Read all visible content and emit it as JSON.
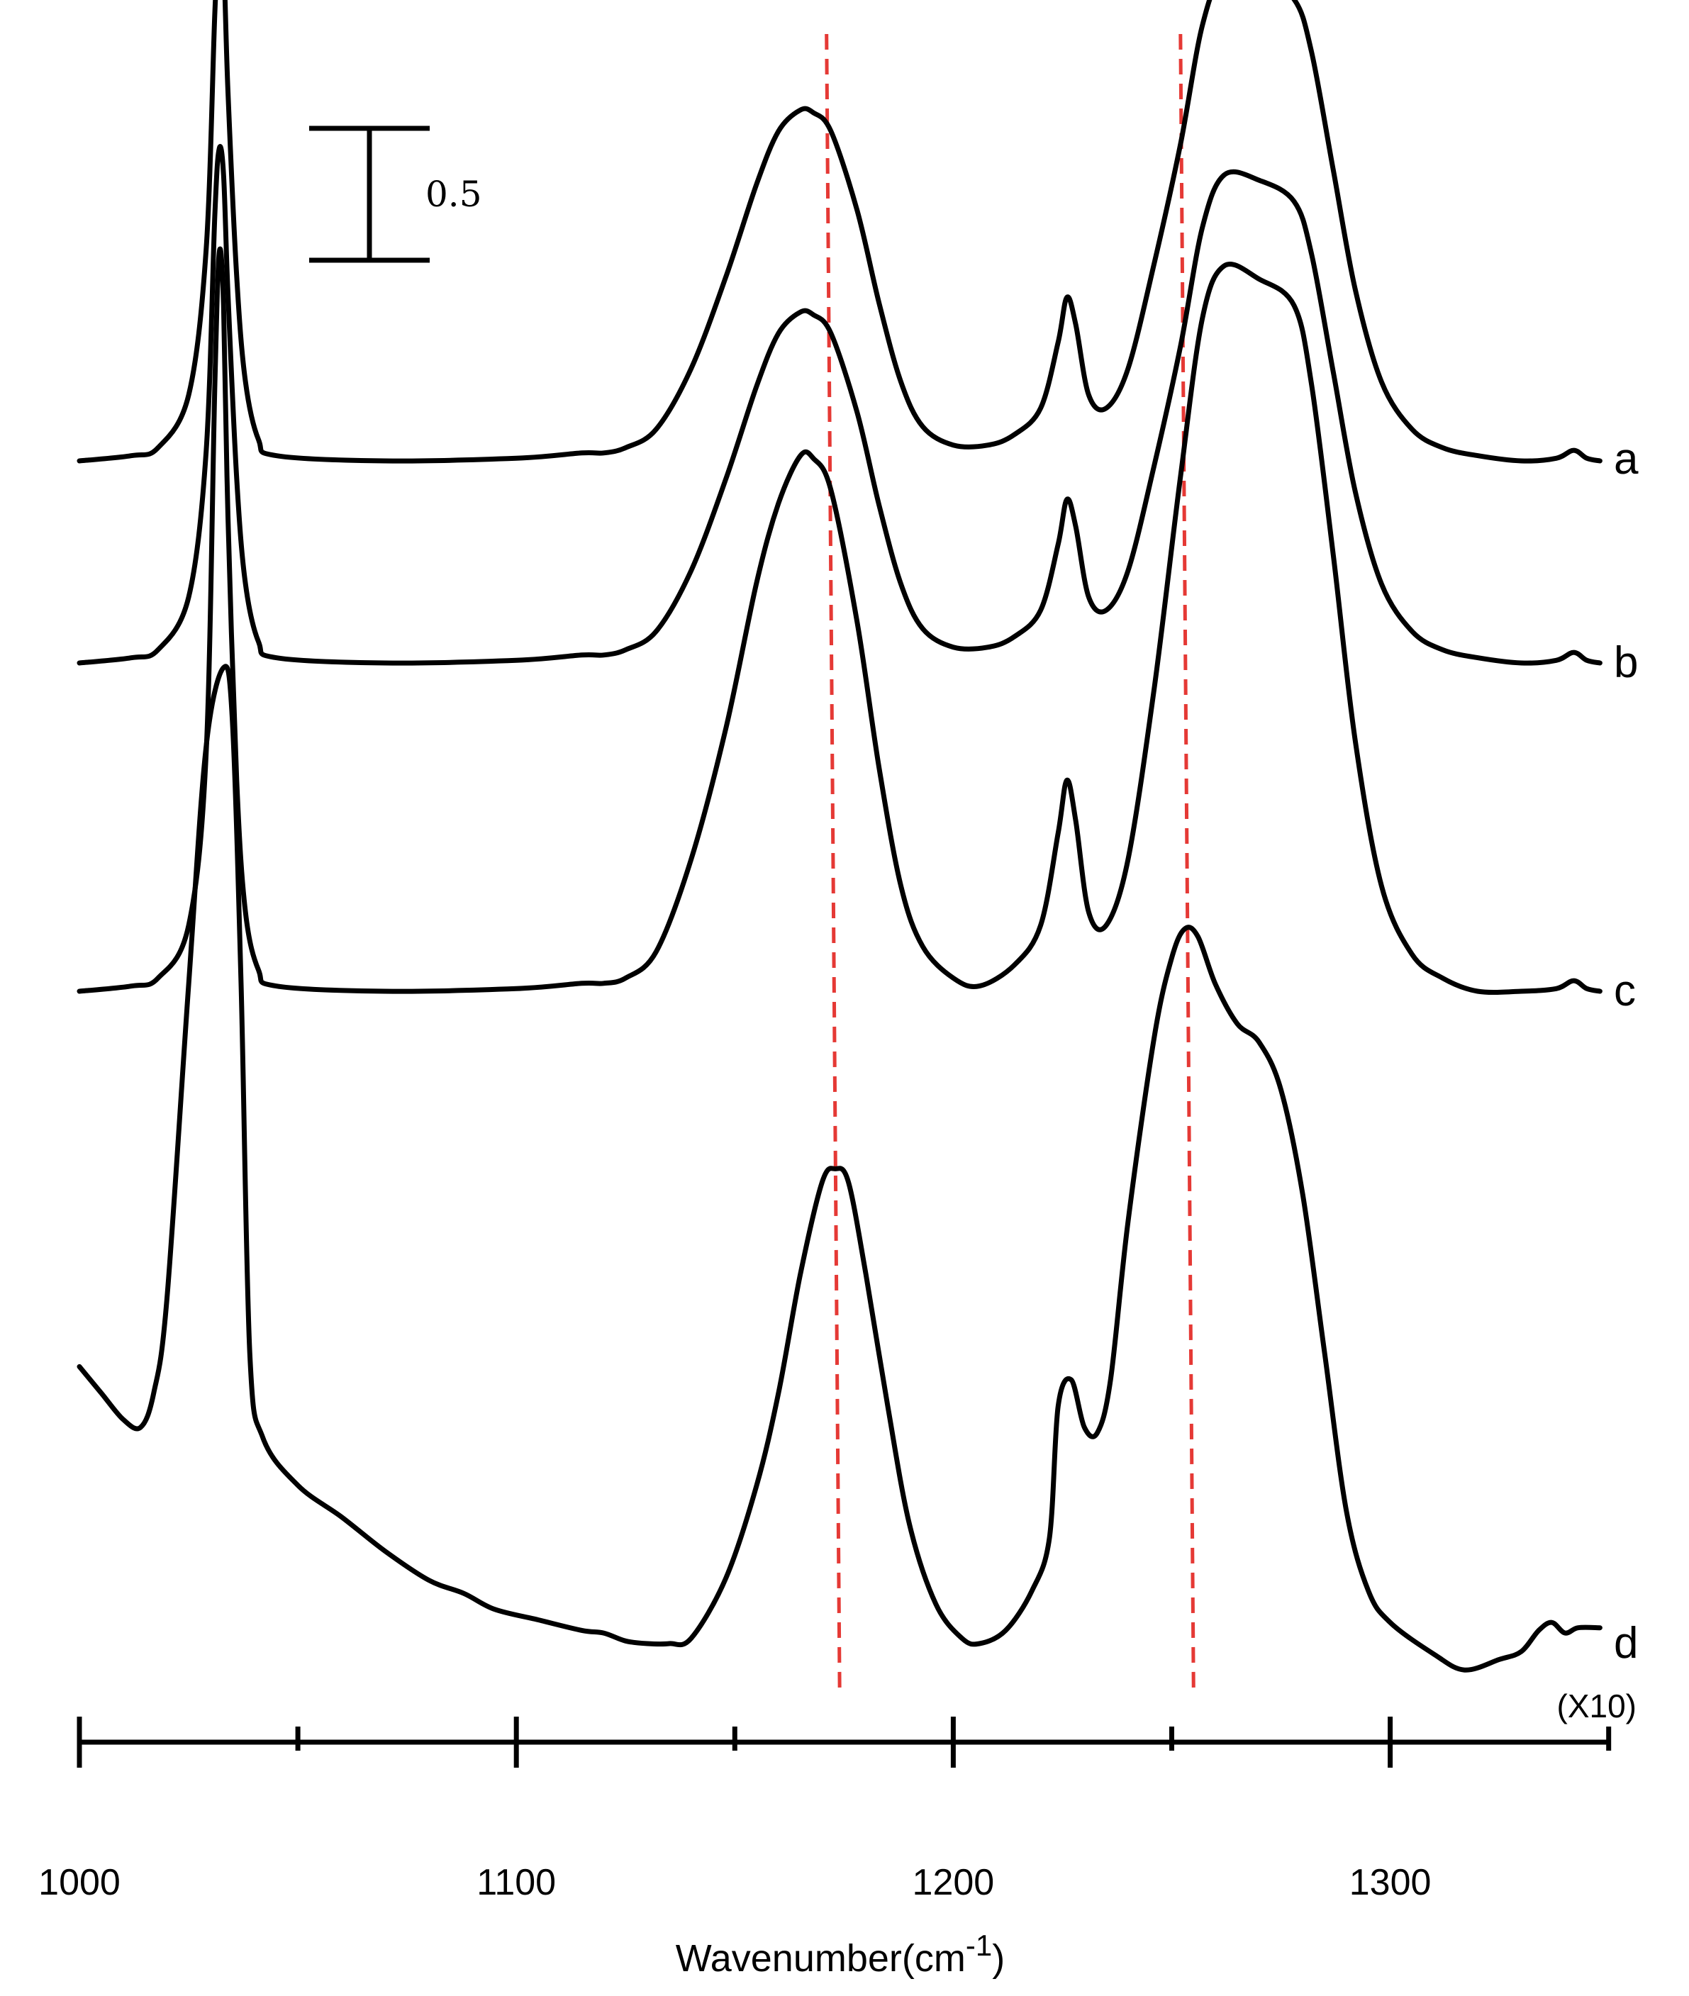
{
  "chart_data": {
    "type": "line",
    "title": "",
    "xlabel": "Wavenumber(cm",
    "xlabel_superscript": "-1",
    "xlabel_close": ")",
    "multiplier": "(X10)",
    "xlim": [
      1000,
      1350
    ],
    "x_tick_labels": [
      "1000",
      "1100",
      "1200",
      "1300"
    ],
    "x_major_ticks": [
      1000,
      1100,
      1200,
      1300
    ],
    "x_minor_ticks": [
      1050,
      1150,
      1250,
      1350
    ],
    "scale_bar": {
      "label": "0.5",
      "value": 0.5
    },
    "grid": false,
    "reference_lines": [
      {
        "x_top": 1171,
        "x_bottom": 1174,
        "color": "#e53935"
      },
      {
        "x_top": 1252,
        "x_bottom": 1255,
        "color": "#e53935"
      }
    ],
    "series": [
      {
        "name": "a",
        "points": [
          [
            1000,
            0.0
          ],
          [
            1012,
            0.02
          ],
          [
            1018,
            0.05
          ],
          [
            1025,
            0.25
          ],
          [
            1029,
            0.8
          ],
          [
            1031,
            1.7
          ],
          [
            1032,
            2.0
          ],
          [
            1033,
            1.9
          ],
          [
            1034,
            1.4
          ],
          [
            1036,
            0.7
          ],
          [
            1038,
            0.3
          ],
          [
            1041,
            0.08
          ],
          [
            1045,
            0.02
          ],
          [
            1070,
            0.0
          ],
          [
            1100,
            0.01
          ],
          [
            1115,
            0.03
          ],
          [
            1120,
            0.03
          ],
          [
            1125,
            0.05
          ],
          [
            1132,
            0.12
          ],
          [
            1140,
            0.35
          ],
          [
            1148,
            0.7
          ],
          [
            1155,
            1.05
          ],
          [
            1160,
            1.25
          ],
          [
            1165,
            1.33
          ],
          [
            1168,
            1.32
          ],
          [
            1172,
            1.25
          ],
          [
            1178,
            0.95
          ],
          [
            1183,
            0.6
          ],
          [
            1188,
            0.3
          ],
          [
            1193,
            0.13
          ],
          [
            1200,
            0.06
          ],
          [
            1208,
            0.06
          ],
          [
            1214,
            0.1
          ],
          [
            1220,
            0.2
          ],
          [
            1224,
            0.45
          ],
          [
            1226,
            0.62
          ],
          [
            1228,
            0.52
          ],
          [
            1231,
            0.25
          ],
          [
            1235,
            0.2
          ],
          [
            1240,
            0.35
          ],
          [
            1246,
            0.75
          ],
          [
            1252,
            1.2
          ],
          [
            1257,
            1.65
          ],
          [
            1262,
            1.85
          ],
          [
            1270,
            1.83
          ],
          [
            1278,
            1.75
          ],
          [
            1282,
            1.55
          ],
          [
            1287,
            1.1
          ],
          [
            1292,
            0.65
          ],
          [
            1298,
            0.3
          ],
          [
            1305,
            0.12
          ],
          [
            1312,
            0.05
          ],
          [
            1320,
            0.02
          ],
          [
            1330,
            0.0
          ],
          [
            1338,
            0.01
          ],
          [
            1342,
            0.04
          ],
          [
            1345,
            0.01
          ],
          [
            1348,
            0.0
          ]
        ]
      },
      {
        "name": "b",
        "points": [
          [
            1000,
            0.0
          ],
          [
            1012,
            0.02
          ],
          [
            1018,
            0.05
          ],
          [
            1025,
            0.25
          ],
          [
            1029,
            0.8
          ],
          [
            1031,
            1.7
          ],
          [
            1032,
            1.95
          ],
          [
            1033,
            1.85
          ],
          [
            1034,
            1.4
          ],
          [
            1036,
            0.7
          ],
          [
            1038,
            0.3
          ],
          [
            1041,
            0.08
          ],
          [
            1045,
            0.02
          ],
          [
            1070,
            0.0
          ],
          [
            1100,
            0.01
          ],
          [
            1115,
            0.03
          ],
          [
            1120,
            0.03
          ],
          [
            1125,
            0.05
          ],
          [
            1132,
            0.12
          ],
          [
            1140,
            0.35
          ],
          [
            1148,
            0.7
          ],
          [
            1155,
            1.05
          ],
          [
            1160,
            1.25
          ],
          [
            1165,
            1.33
          ],
          [
            1168,
            1.32
          ],
          [
            1172,
            1.25
          ],
          [
            1178,
            0.95
          ],
          [
            1183,
            0.6
          ],
          [
            1188,
            0.3
          ],
          [
            1193,
            0.13
          ],
          [
            1200,
            0.06
          ],
          [
            1208,
            0.06
          ],
          [
            1214,
            0.1
          ],
          [
            1220,
            0.2
          ],
          [
            1224,
            0.45
          ],
          [
            1226,
            0.62
          ],
          [
            1228,
            0.52
          ],
          [
            1231,
            0.25
          ],
          [
            1235,
            0.2
          ],
          [
            1240,
            0.35
          ],
          [
            1246,
            0.75
          ],
          [
            1252,
            1.2
          ],
          [
            1257,
            1.65
          ],
          [
            1262,
            1.85
          ],
          [
            1270,
            1.83
          ],
          [
            1278,
            1.75
          ],
          [
            1282,
            1.55
          ],
          [
            1287,
            1.1
          ],
          [
            1292,
            0.65
          ],
          [
            1298,
            0.3
          ],
          [
            1305,
            0.12
          ],
          [
            1312,
            0.05
          ],
          [
            1320,
            0.02
          ],
          [
            1330,
            0.0
          ],
          [
            1338,
            0.01
          ],
          [
            1342,
            0.04
          ],
          [
            1345,
            0.01
          ],
          [
            1348,
            0.0
          ]
        ]
      },
      {
        "name": "c",
        "points": [
          [
            1000,
            0.0
          ],
          [
            1012,
            0.02
          ],
          [
            1018,
            0.05
          ],
          [
            1025,
            0.25
          ],
          [
            1029,
            0.9
          ],
          [
            1031,
            2.3
          ],
          [
            1032,
            2.8
          ],
          [
            1033,
            2.6
          ],
          [
            1034,
            1.8
          ],
          [
            1036,
            0.8
          ],
          [
            1038,
            0.3
          ],
          [
            1041,
            0.08
          ],
          [
            1045,
            0.02
          ],
          [
            1070,
            0.0
          ],
          [
            1100,
            0.01
          ],
          [
            1115,
            0.03
          ],
          [
            1120,
            0.03
          ],
          [
            1125,
            0.05
          ],
          [
            1132,
            0.15
          ],
          [
            1140,
            0.5
          ],
          [
            1148,
            1.0
          ],
          [
            1155,
            1.55
          ],
          [
            1160,
            1.85
          ],
          [
            1165,
            2.03
          ],
          [
            1168,
            2.02
          ],
          [
            1172,
            1.9
          ],
          [
            1178,
            1.4
          ],
          [
            1183,
            0.85
          ],
          [
            1188,
            0.4
          ],
          [
            1193,
            0.17
          ],
          [
            1200,
            0.05
          ],
          [
            1206,
            0.02
          ],
          [
            1214,
            0.1
          ],
          [
            1220,
            0.25
          ],
          [
            1224,
            0.6
          ],
          [
            1226,
            0.8
          ],
          [
            1228,
            0.65
          ],
          [
            1231,
            0.3
          ],
          [
            1235,
            0.25
          ],
          [
            1240,
            0.5
          ],
          [
            1246,
            1.15
          ],
          [
            1252,
            1.95
          ],
          [
            1257,
            2.55
          ],
          [
            1262,
            2.75
          ],
          [
            1270,
            2.7
          ],
          [
            1278,
            2.6
          ],
          [
            1282,
            2.3
          ],
          [
            1287,
            1.65
          ],
          [
            1292,
            0.95
          ],
          [
            1298,
            0.4
          ],
          [
            1305,
            0.14
          ],
          [
            1312,
            0.05
          ],
          [
            1320,
            0.0
          ],
          [
            1330,
            0.0
          ],
          [
            1338,
            0.01
          ],
          [
            1342,
            0.04
          ],
          [
            1345,
            0.01
          ],
          [
            1348,
            0.0
          ]
        ]
      },
      {
        "name": "d",
        "points": [
          [
            1000,
            1.05
          ],
          [
            1005,
            0.95
          ],
          [
            1010,
            0.85
          ],
          [
            1014,
            0.82
          ],
          [
            1017,
            0.95
          ],
          [
            1020,
            1.3
          ],
          [
            1025,
            2.5
          ],
          [
            1029,
            3.4
          ],
          [
            1033,
            3.7
          ],
          [
            1035,
            3.5
          ],
          [
            1037,
            2.5
          ],
          [
            1039,
            1.1
          ],
          [
            1042,
            0.78
          ],
          [
            1050,
            0.6
          ],
          [
            1060,
            0.48
          ],
          [
            1070,
            0.35
          ],
          [
            1080,
            0.24
          ],
          [
            1088,
            0.19
          ],
          [
            1095,
            0.13
          ],
          [
            1105,
            0.09
          ],
          [
            1115,
            0.05
          ],
          [
            1120,
            0.04
          ],
          [
            1125,
            0.01
          ],
          [
            1130,
            0.0
          ],
          [
            1135,
            0.0
          ],
          [
            1140,
            0.02
          ],
          [
            1148,
            0.25
          ],
          [
            1155,
            0.6
          ],
          [
            1160,
            0.95
          ],
          [
            1165,
            1.4
          ],
          [
            1170,
            1.75
          ],
          [
            1173,
            1.8
          ],
          [
            1176,
            1.75
          ],
          [
            1180,
            1.4
          ],
          [
            1185,
            0.9
          ],
          [
            1190,
            0.45
          ],
          [
            1196,
            0.15
          ],
          [
            1202,
            0.02
          ],
          [
            1206,
            0.0
          ],
          [
            1212,
            0.05
          ],
          [
            1218,
            0.2
          ],
          [
            1222,
            0.4
          ],
          [
            1224,
            0.9
          ],
          [
            1227,
            1.0
          ],
          [
            1230,
            0.82
          ],
          [
            1233,
            0.8
          ],
          [
            1236,
            1.0
          ],
          [
            1240,
            1.6
          ],
          [
            1246,
            2.3
          ],
          [
            1250,
            2.6
          ],
          [
            1253,
            2.71
          ],
          [
            1256,
            2.68
          ],
          [
            1260,
            2.5
          ],
          [
            1265,
            2.35
          ],
          [
            1270,
            2.28
          ],
          [
            1275,
            2.1
          ],
          [
            1280,
            1.7
          ],
          [
            1285,
            1.1
          ],
          [
            1290,
            0.5
          ],
          [
            1295,
            0.2
          ],
          [
            1300,
            0.08
          ],
          [
            1310,
            -0.04
          ],
          [
            1317,
            -0.1
          ],
          [
            1325,
            -0.06
          ],
          [
            1330,
            -0.03
          ],
          [
            1334,
            0.05
          ],
          [
            1337,
            0.08
          ],
          [
            1340,
            0.04
          ],
          [
            1343,
            0.06
          ],
          [
            1348,
            0.06
          ]
        ]
      }
    ]
  }
}
